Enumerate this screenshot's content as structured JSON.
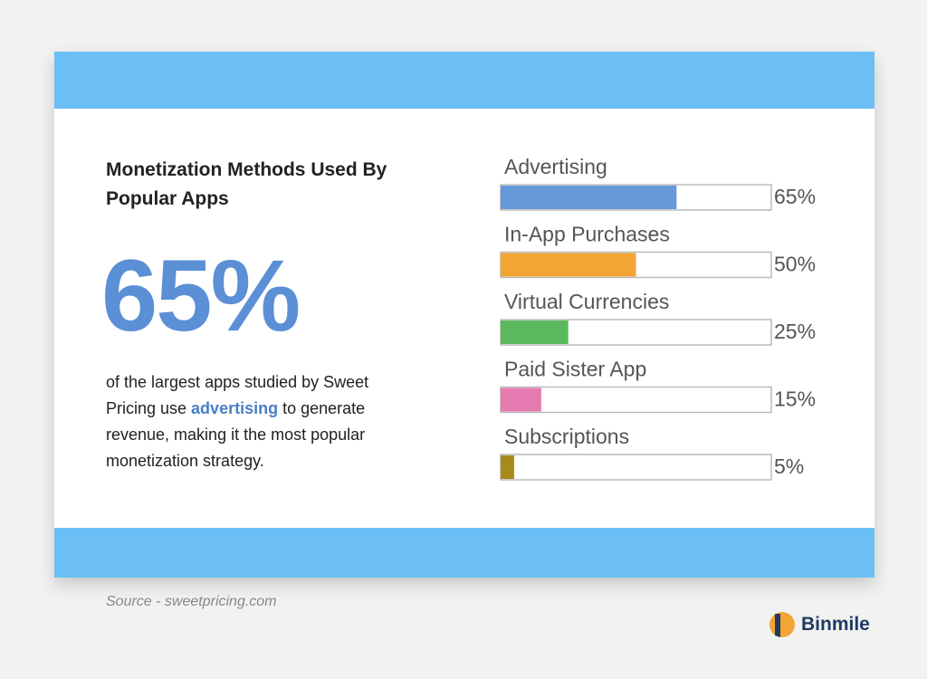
{
  "headline": "Monetization Methods Used By Popular Apps",
  "stat": "65%",
  "description": [
    "of the largest apps studied by Sweet Pricing use ",
    "advertising",
    " to generate revenue, making it the most popular monetization strategy."
  ],
  "source": "Source - sweetpricing.com",
  "brand": "Binmile",
  "chart_data": {
    "type": "bar",
    "orientation": "horizontal",
    "categories": [
      "Advertising",
      "In-App Purchases",
      "Virtual Currencies",
      "Paid Sister App",
      "Subscriptions"
    ],
    "values": [
      65,
      50,
      25,
      15,
      5
    ],
    "value_labels": [
      "65%",
      "50%",
      "25%",
      "15%",
      "5%"
    ],
    "colors": [
      "#6699d8",
      "#f2a535",
      "#5cb85c",
      "#e57bb0",
      "#a88a1a"
    ],
    "xlim": [
      0,
      100
    ]
  }
}
